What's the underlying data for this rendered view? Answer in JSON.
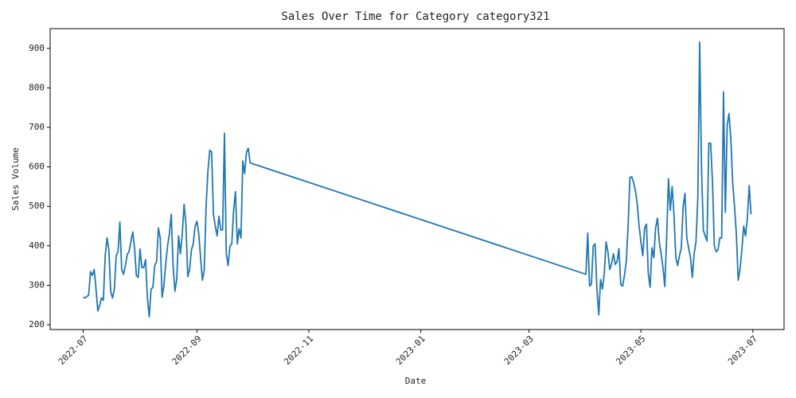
{
  "chart_data": {
    "type": "line",
    "title": "Sales Over Time for Category category321",
    "xlabel": "Date",
    "ylabel": "Sales Volume",
    "x": [
      "2022-07-01",
      "2022-07-02",
      "2022-07-03",
      "2022-07-04",
      "2022-07-05",
      "2022-07-06",
      "2022-07-07",
      "2022-07-08",
      "2022-07-09",
      "2022-07-10",
      "2022-07-11",
      "2022-07-12",
      "2022-07-13",
      "2022-07-14",
      "2022-07-15",
      "2022-07-16",
      "2022-07-17",
      "2022-07-18",
      "2022-07-19",
      "2022-07-20",
      "2022-07-21",
      "2022-07-22",
      "2022-07-23",
      "2022-07-24",
      "2022-07-25",
      "2022-07-26",
      "2022-07-27",
      "2022-07-28",
      "2022-07-29",
      "2022-07-30",
      "2022-07-31",
      "2022-08-01",
      "2022-08-02",
      "2022-08-03",
      "2022-08-04",
      "2022-08-05",
      "2022-08-06",
      "2022-08-07",
      "2022-08-08",
      "2022-08-09",
      "2022-08-10",
      "2022-08-11",
      "2022-08-12",
      "2022-08-13",
      "2022-08-14",
      "2022-08-15",
      "2022-08-16",
      "2022-08-17",
      "2022-08-18",
      "2022-08-19",
      "2022-08-20",
      "2022-08-21",
      "2022-08-22",
      "2022-08-23",
      "2022-08-24",
      "2022-08-25",
      "2022-08-26",
      "2022-08-27",
      "2022-08-28",
      "2022-08-29",
      "2022-08-30",
      "2022-08-31",
      "2022-09-01",
      "2022-09-02",
      "2022-09-03",
      "2022-09-04",
      "2022-09-05",
      "2022-09-06",
      "2022-09-07",
      "2022-09-08",
      "2022-09-09",
      "2022-09-10",
      "2022-09-11",
      "2022-09-12",
      "2022-09-13",
      "2022-09-14",
      "2022-09-15",
      "2022-09-16",
      "2022-09-17",
      "2022-09-18",
      "2022-09-19",
      "2022-09-20",
      "2022-09-21",
      "2022-09-22",
      "2022-09-23",
      "2022-09-24",
      "2022-09-25",
      "2022-09-26",
      "2022-09-27",
      "2022-09-28",
      "2022-09-29",
      "2022-09-30",
      "2023-04-01",
      "2023-04-02",
      "2023-04-03",
      "2023-04-04",
      "2023-04-05",
      "2023-04-06",
      "2023-04-07",
      "2023-04-08",
      "2023-04-09",
      "2023-04-10",
      "2023-04-11",
      "2023-04-12",
      "2023-04-13",
      "2023-04-14",
      "2023-04-15",
      "2023-04-16",
      "2023-04-17",
      "2023-04-18",
      "2023-04-19",
      "2023-04-20",
      "2023-04-21",
      "2023-04-22",
      "2023-04-23",
      "2023-04-24",
      "2023-04-25",
      "2023-04-26",
      "2023-04-27",
      "2023-04-28",
      "2023-04-29",
      "2023-04-30",
      "2023-05-01",
      "2023-05-02",
      "2023-05-03",
      "2023-05-04",
      "2023-05-05",
      "2023-05-06",
      "2023-05-07",
      "2023-05-08",
      "2023-05-09",
      "2023-05-10",
      "2023-05-11",
      "2023-05-12",
      "2023-05-13",
      "2023-05-14",
      "2023-05-15",
      "2023-05-16",
      "2023-05-17",
      "2023-05-18",
      "2023-05-19",
      "2023-05-20",
      "2023-05-21",
      "2023-05-22",
      "2023-05-23",
      "2023-05-24",
      "2023-05-25",
      "2023-05-26",
      "2023-05-27",
      "2023-05-28",
      "2023-05-29",
      "2023-05-30",
      "2023-05-31",
      "2023-06-01",
      "2023-06-02",
      "2023-06-03",
      "2023-06-04",
      "2023-06-05",
      "2023-06-06",
      "2023-06-07",
      "2023-06-08",
      "2023-06-09",
      "2023-06-10",
      "2023-06-11",
      "2023-06-12",
      "2023-06-13",
      "2023-06-14",
      "2023-06-15",
      "2023-06-16",
      "2023-06-17",
      "2023-06-18",
      "2023-06-19",
      "2023-06-20",
      "2023-06-21",
      "2023-06-22",
      "2023-06-23",
      "2023-06-24",
      "2023-06-25",
      "2023-06-26",
      "2023-06-27",
      "2023-06-28",
      "2023-06-29",
      "2023-06-30"
    ],
    "values": [
      270,
      268,
      272,
      275,
      335,
      325,
      340,
      290,
      235,
      250,
      268,
      262,
      375,
      420,
      390,
      285,
      268,
      290,
      375,
      385,
      460,
      340,
      328,
      350,
      378,
      385,
      410,
      435,
      395,
      325,
      320,
      392,
      345,
      345,
      365,
      270,
      220,
      290,
      295,
      350,
      360,
      445,
      420,
      270,
      300,
      355,
      400,
      430,
      480,
      350,
      285,
      315,
      425,
      380,
      430,
      505,
      455,
      322,
      340,
      390,
      405,
      450,
      462,
      430,
      370,
      313,
      340,
      500,
      590,
      642,
      638,
      480,
      450,
      425,
      475,
      440,
      440,
      685,
      380,
      350,
      400,
      405,
      490,
      537,
      405,
      443,
      420,
      615,
      583,
      637,
      647,
      610,
      328,
      432,
      298,
      303,
      400,
      405,
      290,
      225,
      315,
      290,
      330,
      410,
      385,
      340,
      355,
      380,
      353,
      360,
      393,
      302,
      298,
      325,
      360,
      450,
      573,
      575,
      560,
      540,
      505,
      450,
      410,
      375,
      445,
      455,
      330,
      295,
      395,
      370,
      445,
      470,
      410,
      380,
      345,
      297,
      420,
      570,
      490,
      550,
      480,
      370,
      350,
      375,
      395,
      500,
      533,
      420,
      395,
      370,
      320,
      380,
      410,
      520,
      916,
      600,
      440,
      425,
      412,
      660,
      660,
      560,
      400,
      385,
      390,
      420,
      420,
      790,
      485,
      705,
      735,
      670,
      560,
      500,
      430,
      313,
      340,
      390,
      450,
      425,
      470,
      553,
      480
    ],
    "color": "#1f77b4",
    "xlim": [
      "2022-06-13",
      "2023-07-18"
    ],
    "xticks": [
      {
        "value": "2022-07-01",
        "label": "2022-07"
      },
      {
        "value": "2022-09-01",
        "label": "2022-09"
      },
      {
        "value": "2022-11-01",
        "label": "2022-11"
      },
      {
        "value": "2023-01-01",
        "label": "2023-01"
      },
      {
        "value": "2023-03-01",
        "label": "2023-03"
      },
      {
        "value": "2023-05-01",
        "label": "2023-05"
      },
      {
        "value": "2023-07-01",
        "label": "2023-07"
      }
    ],
    "ylim": [
      188,
      950
    ],
    "yticks": [
      200,
      300,
      400,
      500,
      600,
      700,
      800,
      900
    ]
  }
}
